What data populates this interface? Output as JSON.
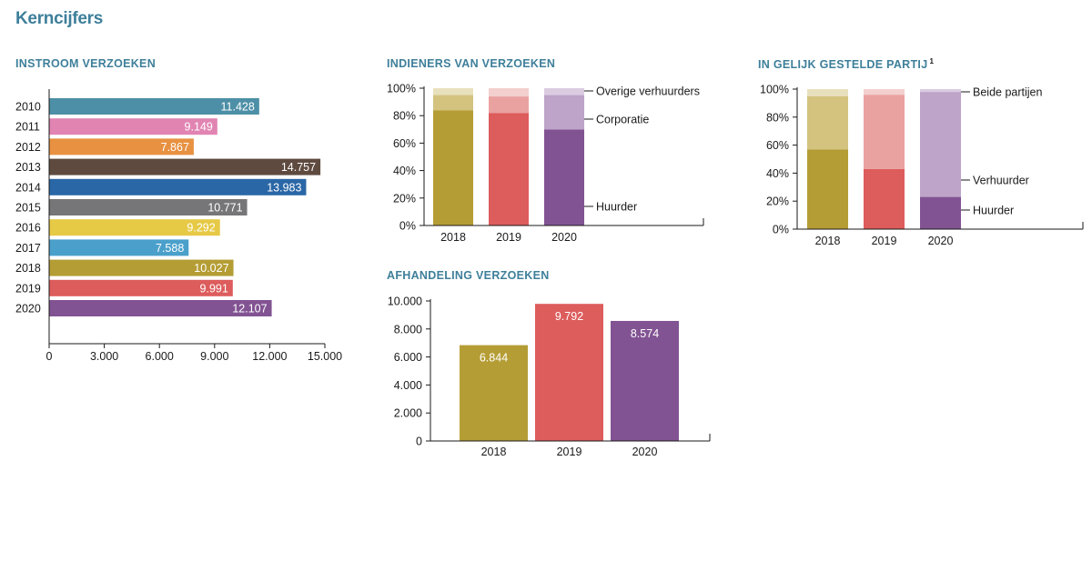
{
  "page": {
    "title": "Kerncijfers"
  },
  "colors": {
    "gold": "#b59d35",
    "gold_mid": "#d3c37f",
    "gold_light": "#e8e0bd",
    "red": "#dd5c5c",
    "red_mid": "#eaa2a0",
    "red_light": "#f3cfcd",
    "purple": "#825393",
    "purple_mid": "#bda4c8",
    "purple_light": "#dbcce2",
    "teal": "#4d8fa7",
    "pink": "#e184b2",
    "orange": "#e79141",
    "brown": "#5e4a3f",
    "blue": "#2a67a6",
    "grey": "#767678",
    "yellow": "#e6c945",
    "lightblue": "#4aa0cb",
    "title": "#3e7f9a"
  },
  "chart_data": [
    {
      "id": "instroom",
      "type": "bar",
      "orientation": "horizontal",
      "title": "INSTROOM VERZOEKEN",
      "categories": [
        "2010",
        "2011",
        "2012",
        "2013",
        "2014",
        "2015",
        "2016",
        "2017",
        "2018",
        "2019",
        "2020"
      ],
      "values": [
        11428,
        9149,
        7867,
        14757,
        13983,
        10771,
        9292,
        7588,
        10027,
        9991,
        12107
      ],
      "value_labels": [
        "11.428",
        "9.149",
        "7.867",
        "14.757",
        "13.983",
        "10.771",
        "9.292",
        "7.588",
        "10.027",
        "9.991",
        "12.107"
      ],
      "bar_colors": [
        "teal",
        "pink",
        "orange",
        "brown",
        "blue",
        "grey",
        "yellow",
        "lightblue",
        "gold",
        "red",
        "purple"
      ],
      "xlim": [
        0,
        15000
      ],
      "xticks": [
        0,
        3000,
        6000,
        9000,
        12000,
        15000
      ],
      "xtick_labels": [
        "0",
        "3.000",
        "6.000",
        "9.000",
        "12.000",
        "15.000"
      ],
      "grid": false
    },
    {
      "id": "indieners",
      "type": "bar",
      "stacked": true,
      "title": "INDIENERS VAN VERZOEKEN",
      "categories": [
        "2018",
        "2019",
        "2020"
      ],
      "series": [
        {
          "name": "Huurder",
          "values": [
            84,
            82,
            70
          ]
        },
        {
          "name": "Corporatie",
          "values": [
            11,
            12,
            25
          ]
        },
        {
          "name": "Overige verhuurders",
          "values": [
            5,
            6,
            5
          ]
        }
      ],
      "ylim": [
        0,
        100
      ],
      "yticks": [
        0,
        20,
        40,
        60,
        80,
        100
      ],
      "ytick_labels": [
        "0%",
        "20%",
        "40%",
        "60%",
        "80%",
        "100%"
      ],
      "series_colors": [
        [
          "gold",
          "red",
          "purple"
        ],
        [
          "gold_mid",
          "red_mid",
          "purple_mid"
        ],
        [
          "gold_light",
          "red_light",
          "purple_light"
        ]
      ],
      "legend": "right",
      "grid": false
    },
    {
      "id": "gelijk",
      "type": "bar",
      "stacked": true,
      "title": "IN GELIJK GESTELDE PARTIJ",
      "title_footnote": "1",
      "categories": [
        "2018",
        "2019",
        "2020"
      ],
      "series": [
        {
          "name": "Huurder",
          "values": [
            57,
            43,
            23
          ]
        },
        {
          "name": "Verhuurder",
          "values": [
            38,
            53,
            75
          ]
        },
        {
          "name": "Beide partijen",
          "values": [
            5,
            4,
            2
          ]
        }
      ],
      "ylim": [
        0,
        100
      ],
      "yticks": [
        0,
        20,
        40,
        60,
        80,
        100
      ],
      "ytick_labels": [
        "0%",
        "20%",
        "40%",
        "60%",
        "80%",
        "100%"
      ],
      "series_colors": [
        [
          "gold",
          "red",
          "purple"
        ],
        [
          "gold_mid",
          "red_mid",
          "purple_mid"
        ],
        [
          "gold_light",
          "red_light",
          "purple_light"
        ]
      ],
      "legend": "right",
      "grid": false
    },
    {
      "id": "afhandeling",
      "type": "bar",
      "title": "AFHANDELING VERZOEKEN",
      "categories": [
        "2018",
        "2019",
        "2020"
      ],
      "values": [
        6844,
        9792,
        8574
      ],
      "value_labels": [
        "6.844",
        "9.792",
        "8.574"
      ],
      "bar_colors": [
        "gold",
        "red",
        "purple"
      ],
      "ylim": [
        0,
        10000
      ],
      "yticks": [
        0,
        2000,
        4000,
        6000,
        8000,
        10000
      ],
      "ytick_labels": [
        "0",
        "2.000",
        "4.000",
        "6.000",
        "8.000",
        "10.000"
      ],
      "grid": false
    }
  ]
}
